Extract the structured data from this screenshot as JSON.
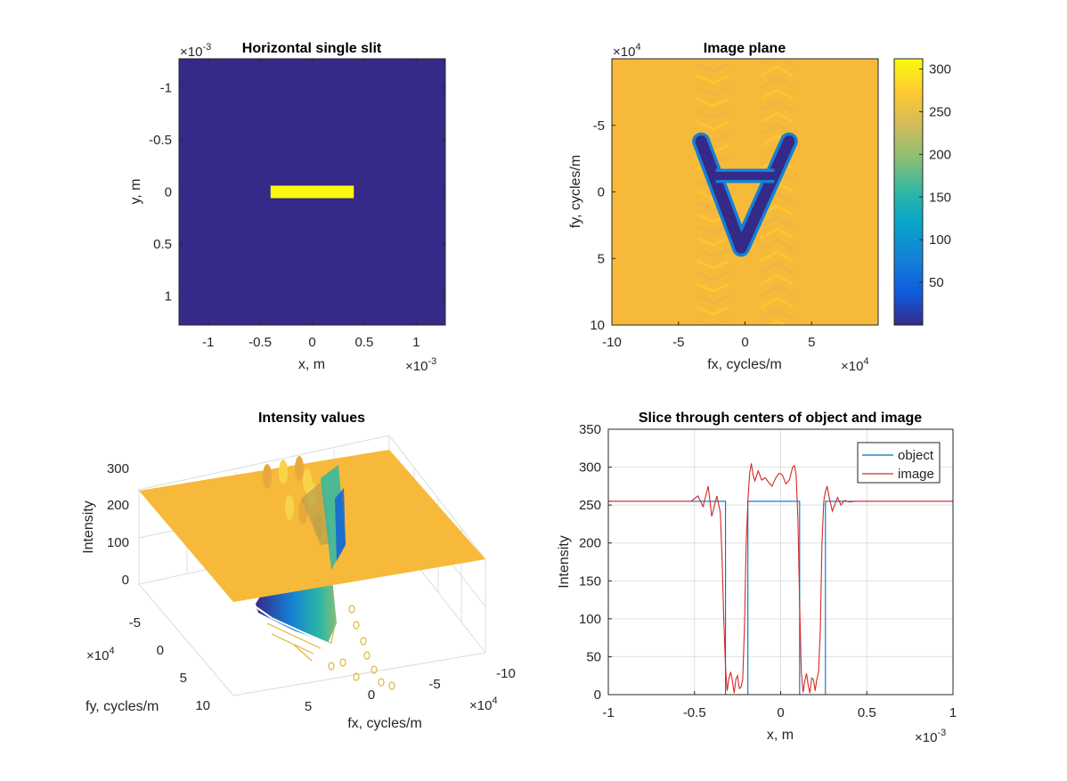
{
  "colors": {
    "parula_dark": "#352a87",
    "parula_yellow": "#f9fb0e",
    "background_orange": "#f7b93a",
    "object_line": "#0072bd",
    "image_line": "#d62728",
    "axes": "#262626",
    "grid": "#dfdfdf"
  },
  "chart_data": [
    {
      "id": "slit",
      "type": "heatmap",
      "title": "Horizontal single slit",
      "xlabel": "x, m",
      "ylabel": "y, m",
      "xlim": [
        -1.28,
        1.28
      ],
      "ylim": [
        -1.28,
        1.28
      ],
      "y_reversed": true,
      "x_ticks": [
        "-1",
        "-0.5",
        "0",
        "0.5",
        "1"
      ],
      "y_ticks": [
        "-1",
        "-0.5",
        "0",
        "0.5",
        "1"
      ],
      "exponent_x": "×10",
      "exponent_y": "×10",
      "exponent_power": "-3",
      "background_value": 0,
      "slit": {
        "x": [
          -0.4,
          0.4
        ],
        "y": [
          -0.06,
          0.06
        ],
        "value": 255
      }
    },
    {
      "id": "image_plane",
      "type": "heatmap",
      "title": "Image plane",
      "xlabel": "fx, cycles/m",
      "ylabel": "fy, cycles/m",
      "xlim": [
        -10,
        10
      ],
      "ylim": [
        -10,
        10
      ],
      "y_reversed": true,
      "x_ticks": [
        "-10",
        "-5",
        "0",
        "5"
      ],
      "y_ticks": [
        "-5",
        "0",
        "5",
        "10"
      ],
      "exponent_base": "×10",
      "exponent_power": "4",
      "colorbar_ticks": [
        "50",
        "100",
        "150",
        "200",
        "250",
        "300"
      ],
      "colorbar_range": [
        0,
        312
      ],
      "background_value": 255,
      "v_shape": {
        "left_top": [
          -3.3,
          -3.8
        ],
        "right_top": [
          3.3,
          -3.8
        ],
        "bottom": [
          -0.3,
          4.2
        ],
        "cross_y": -1.2,
        "value": 2
      }
    },
    {
      "id": "intensity_surface",
      "type": "surface3d",
      "title": "Intensity values",
      "zlabel": "Intensity",
      "xlabel": "fx, cycles/m",
      "ylabel": "fy, cycles/m",
      "z_ticks": [
        "0",
        "100",
        "200",
        "300"
      ],
      "fx_ticks": [
        "5",
        "0",
        "-5",
        "-10"
      ],
      "fy_ticks": [
        "-5",
        "0",
        "5",
        "10"
      ],
      "exponent_base": "×10",
      "exponent_power": "4",
      "plateau_value": 255
    },
    {
      "id": "slice",
      "type": "line",
      "title": "Slice through centers of object and image",
      "xlabel": "x, m",
      "ylabel": "Intensity",
      "xlim": [
        -1,
        1
      ],
      "ylim": [
        0,
        350
      ],
      "x_ticks": [
        -1,
        -0.5,
        0,
        0.5,
        1
      ],
      "y_ticks": [
        0,
        50,
        100,
        150,
        200,
        250,
        300,
        350
      ],
      "exponent_base": "×10",
      "exponent_power": "-3",
      "grid": true,
      "legend_position": "top-right",
      "series": [
        {
          "name": "object",
          "x": [
            -1,
            -0.32,
            -0.32,
            -0.19,
            -0.19,
            0.11,
            0.11,
            0.26,
            0.26,
            1
          ],
          "y": [
            255,
            255,
            0,
            0,
            255,
            255,
            0,
            0,
            255,
            255
          ]
        },
        {
          "name": "image",
          "x": [
            -1,
            -0.52,
            -0.48,
            -0.45,
            -0.42,
            -0.4,
            -0.37,
            -0.35,
            -0.34,
            -0.33,
            -0.32,
            -0.31,
            -0.3,
            -0.29,
            -0.28,
            -0.27,
            -0.26,
            -0.25,
            -0.24,
            -0.23,
            -0.22,
            -0.21,
            -0.2,
            -0.19,
            -0.18,
            -0.17,
            -0.16,
            -0.15,
            -0.13,
            -0.11,
            -0.09,
            -0.07,
            -0.05,
            -0.03,
            -0.01,
            0.01,
            0.03,
            0.05,
            0.07,
            0.08,
            0.09,
            0.1,
            0.11,
            0.12,
            0.13,
            0.14,
            0.15,
            0.16,
            0.17,
            0.18,
            0.19,
            0.2,
            0.21,
            0.22,
            0.23,
            0.24,
            0.25,
            0.26,
            0.27,
            0.28,
            0.3,
            0.33,
            0.35,
            0.37,
            0.4,
            0.43,
            0.47,
            1
          ],
          "y": [
            255,
            255,
            262,
            248,
            275,
            235,
            262,
            240,
            180,
            100,
            35,
            5,
            22,
            30,
            18,
            2,
            20,
            25,
            8,
            10,
            20,
            90,
            200,
            255,
            292,
            305,
            290,
            282,
            295,
            283,
            286,
            280,
            275,
            285,
            292,
            290,
            278,
            283,
            300,
            302,
            290,
            230,
            120,
            30,
            3,
            18,
            28,
            12,
            2,
            22,
            20,
            5,
            20,
            30,
            85,
            200,
            255,
            268,
            275,
            262,
            242,
            260,
            250,
            256,
            254,
            255,
            255,
            255
          ]
        }
      ]
    }
  ]
}
